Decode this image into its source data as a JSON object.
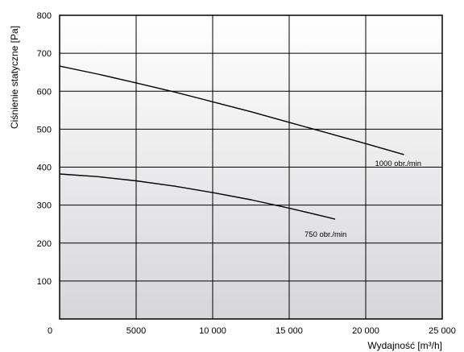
{
  "chart_data": {
    "type": "line",
    "xlabel": "Wydajność [m³/h]",
    "ylabel": "Ciśnienie statyczne [Pa]",
    "xlim": [
      0,
      25000
    ],
    "ylim": [
      0,
      800
    ],
    "x_ticks": [
      0,
      5000,
      10000,
      15000,
      20000,
      25000
    ],
    "x_tick_labels": [
      "0",
      "5000",
      "10 000",
      "15 000",
      "20 000",
      "25 000"
    ],
    "y_ticks": [
      100,
      200,
      300,
      400,
      500,
      600,
      700,
      800
    ],
    "y_tick_labels": [
      "100",
      "200",
      "300",
      "400",
      "500",
      "600",
      "700",
      "800"
    ],
    "grid": true,
    "background": "vertical gradient white to gray",
    "series": [
      {
        "name": "1000 obr./min",
        "x": [
          0,
          2500,
          5000,
          7500,
          10000,
          12500,
          15000,
          17500,
          20000,
          22500
        ],
        "y": [
          666,
          645,
          622,
          598,
          572,
          546,
          518,
          490,
          462,
          433
        ]
      },
      {
        "name": "750 obr./min",
        "x": [
          0,
          2500,
          5000,
          7500,
          10000,
          12500,
          15000,
          17500,
          18000
        ],
        "y": [
          382,
          375,
          364,
          350,
          333,
          314,
          292,
          268,
          263
        ]
      }
    ]
  }
}
